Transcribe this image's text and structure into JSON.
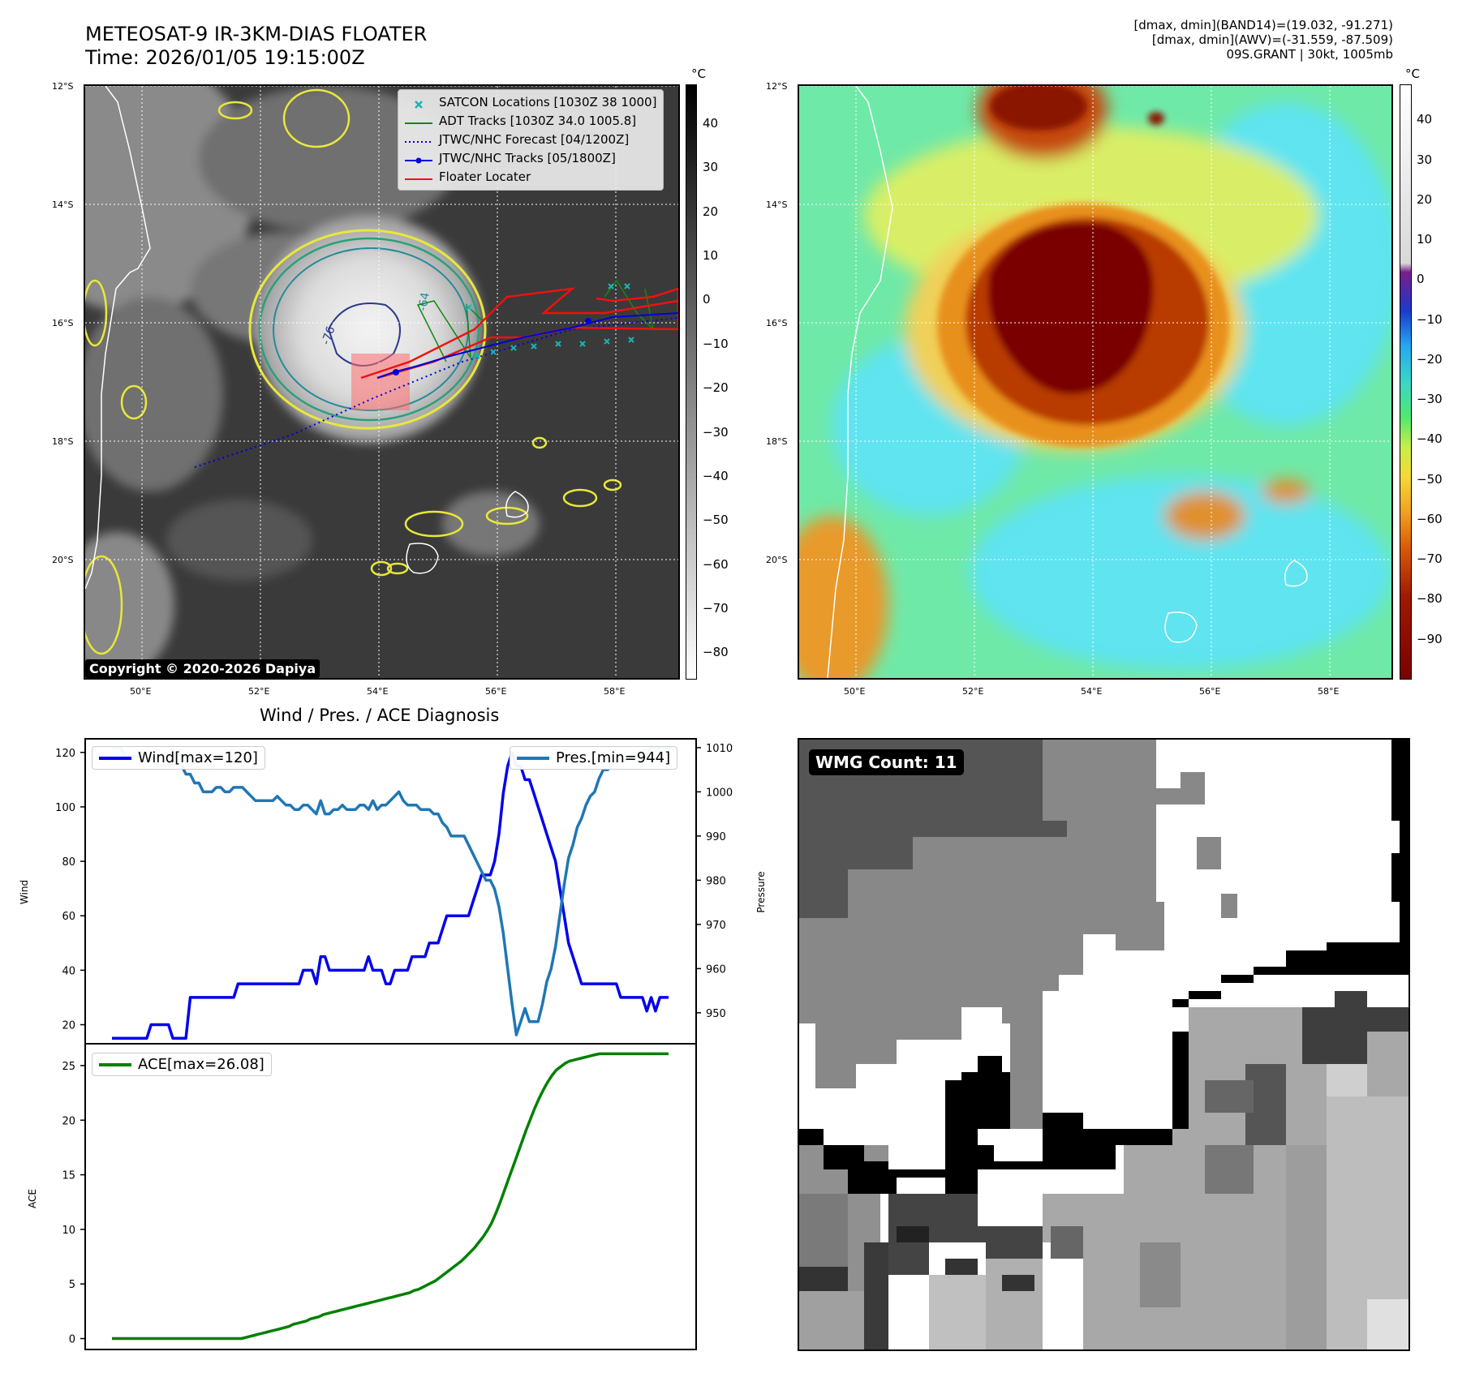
{
  "header": {
    "title_line1": "METEOSAT-9 IR-3KM-DIAS FLOATER",
    "title_line2": "Time: 2026/01/05 19:15:00Z",
    "stats_line1": "[dmax, dmin](BAND14)=(19.032, -91.271)",
    "stats_line2": "[dmax, dmin](AWV)=(-31.559, -87.509)",
    "stats_line3": "09S.GRANT | 30kt, 1005mb"
  },
  "map": {
    "lat_labels": [
      "12°S",
      "14°S",
      "16°S",
      "18°S",
      "20°S"
    ],
    "lon_labels": [
      "50°E",
      "52°E",
      "54°E",
      "56°E",
      "58°E"
    ],
    "contour_labels": [
      "-64",
      "-76"
    ],
    "copyright": "Copyright © 2020-2026 Dapiya",
    "legend": [
      {
        "label": "SATCON Locations [1030Z 38 1000]",
        "color": "#19b4b4",
        "style": "x"
      },
      {
        "label": "ADT Tracks [1030Z 34.0 1005.8]",
        "color": "#118811",
        "style": "line"
      },
      {
        "label": "JTWC/NHC Forecast [04/1200Z]",
        "color": "#0000dd",
        "style": "dotted"
      },
      {
        "label": "JTWC/NHC Tracks [05/1800Z]",
        "color": "#0000dd",
        "style": "line-dot"
      },
      {
        "label": "Floater Locater",
        "color": "#ee1111",
        "style": "line"
      }
    ],
    "colorbar_left": {
      "unit": "°C",
      "ticks": [
        "40",
        "30",
        "20",
        "10",
        "0",
        "−10",
        "−20",
        "−30",
        "−40",
        "−50",
        "−60",
        "−70",
        "−80"
      ]
    },
    "colorbar_right": {
      "unit": "°C",
      "ticks": [
        "40",
        "30",
        "20",
        "10",
        "0",
        "−10",
        "−20",
        "−30",
        "−40",
        "−50",
        "−60",
        "−70",
        "−80",
        "−90"
      ]
    }
  },
  "wmg": {
    "label": "WMG Count: 11"
  },
  "chart_data": [
    {
      "type": "line",
      "title": "Wind / Pres. / ACE Diagnosis",
      "ylabel": "Wind",
      "y2label": "Pressure",
      "ylim": [
        13,
        125
      ],
      "y2lim": [
        943,
        1012
      ],
      "yticks": [
        20,
        40,
        60,
        80,
        100,
        120
      ],
      "y2ticks": [
        950,
        960,
        970,
        980,
        990,
        1000,
        1010
      ],
      "series": [
        {
          "name": "Wind[max=120]",
          "color": "#0000ee",
          "values": [
            15,
            15,
            15,
            15,
            15,
            15,
            15,
            15,
            15,
            20,
            20,
            20,
            20,
            20,
            15,
            15,
            15,
            15,
            30,
            30,
            30,
            30,
            30,
            30,
            30,
            30,
            30,
            30,
            30,
            35,
            35,
            35,
            35,
            35,
            35,
            35,
            35,
            35,
            35,
            35,
            35,
            35,
            35,
            35,
            40,
            40,
            40,
            35,
            45,
            45,
            40,
            40,
            40,
            40,
            40,
            40,
            40,
            40,
            40,
            45,
            40,
            40,
            40,
            35,
            35,
            40,
            40,
            40,
            40,
            45,
            45,
            45,
            45,
            50,
            50,
            50,
            55,
            60,
            60,
            60,
            60,
            60,
            60,
            65,
            70,
            75,
            75,
            75,
            80,
            90,
            105,
            115,
            120,
            115,
            115,
            110,
            110,
            105,
            100,
            95,
            90,
            85,
            80,
            70,
            60,
            50,
            45,
            40,
            35,
            35,
            35,
            35,
            35,
            35,
            35,
            35,
            35,
            30,
            30,
            30,
            30,
            30,
            30,
            25,
            30,
            25,
            30,
            30,
            30
          ]
        },
        {
          "name": "Pres.[min=944]",
          "color": "#1f77b4",
          "axis": "right",
          "values": [
            1010,
            1010,
            1010,
            1008,
            1008,
            1008,
            1008,
            1008,
            1008,
            1008,
            1006,
            1006,
            1006,
            1006,
            1006,
            1006,
            1006,
            1004,
            1004,
            1002,
            1002,
            1000,
            1000,
            1000,
            1001,
            1001,
            1000,
            1000,
            1001,
            1001,
            1001,
            1000,
            999,
            998,
            998,
            998,
            998,
            998,
            999,
            998,
            997,
            997,
            996,
            996,
            997,
            997,
            996,
            995,
            998,
            995,
            995,
            996,
            996,
            997,
            996,
            996,
            996,
            997,
            997,
            996,
            998,
            996,
            997,
            997,
            998,
            999,
            1000,
            998,
            997,
            997,
            997,
            996,
            996,
            996,
            995,
            995,
            993,
            992,
            990,
            990,
            990,
            990,
            988,
            986,
            984,
            982,
            980,
            980,
            978,
            974,
            968,
            960,
            952,
            945,
            948,
            951,
            948,
            948,
            948,
            952,
            957,
            960,
            965,
            972,
            979,
            985,
            988,
            992,
            994,
            997,
            999,
            1000,
            1003,
            1005,
            1005,
            1006,
            1007,
            1007,
            1007,
            1008,
            1008,
            1008,
            1008,
            1008,
            1010,
            1010,
            1010,
            1010,
            1010,
            1010
          ]
        }
      ]
    },
    {
      "type": "line",
      "ylabel": "ACE",
      "ylim": [
        -1,
        27
      ],
      "yticks": [
        0,
        5,
        10,
        15,
        20,
        25
      ],
      "series": [
        {
          "name": "ACE[max=26.08]",
          "color": "#008000",
          "values": [
            0,
            0,
            0,
            0,
            0,
            0,
            0,
            0,
            0,
            0,
            0,
            0,
            0,
            0,
            0,
            0,
            0,
            0,
            0,
            0,
            0,
            0,
            0,
            0,
            0,
            0,
            0,
            0,
            0,
            0,
            0,
            0.1,
            0.2,
            0.3,
            0.4,
            0.5,
            0.6,
            0.7,
            0.8,
            0.9,
            1.0,
            1.1,
            1.3,
            1.4,
            1.5,
            1.6,
            1.8,
            1.9,
            2.0,
            2.2,
            2.3,
            2.4,
            2.5,
            2.6,
            2.7,
            2.8,
            2.9,
            3.0,
            3.1,
            3.2,
            3.3,
            3.4,
            3.5,
            3.6,
            3.7,
            3.8,
            3.9,
            4.0,
            4.1,
            4.2,
            4.4,
            4.5,
            4.7,
            4.9,
            5.1,
            5.3,
            5.6,
            5.9,
            6.2,
            6.5,
            6.8,
            7.1,
            7.5,
            7.9,
            8.3,
            8.8,
            9.3,
            9.9,
            10.6,
            11.5,
            12.5,
            13.6,
            14.7,
            15.8,
            16.9,
            18.0,
            19.1,
            20.1,
            21.1,
            22.0,
            22.8,
            23.5,
            24.1,
            24.6,
            24.9,
            25.2,
            25.4,
            25.5,
            25.6,
            25.7,
            25.8,
            25.9,
            26.0,
            26.08,
            26.08,
            26.08,
            26.08,
            26.08,
            26.08,
            26.08,
            26.08,
            26.08,
            26.08,
            26.08,
            26.08,
            26.08,
            26.08,
            26.08,
            26.08,
            26.08
          ]
        }
      ]
    }
  ]
}
